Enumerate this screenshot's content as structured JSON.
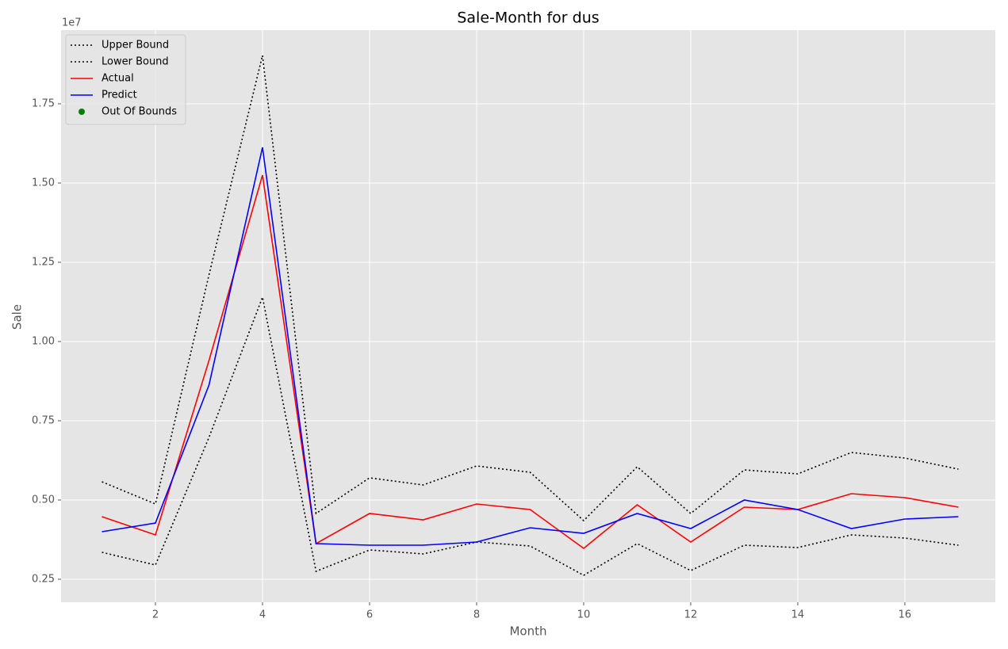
{
  "chart_data": {
    "type": "line",
    "title": "Sale-Month for dus",
    "x_label": "Month",
    "y_label": "Sale",
    "y_offset_label": "1e7",
    "x": [
      1,
      2,
      3,
      4,
      5,
      6,
      7,
      8,
      9,
      10,
      11,
      12,
      13,
      14,
      15,
      16,
      17
    ],
    "series": [
      {
        "name": "Upper Bound",
        "color": "#000000",
        "linestyle": "dotted",
        "values": [
          0.5575,
          0.4875,
          1.21,
          1.9025,
          0.4575,
          0.57,
          0.5475,
          0.6075,
          0.5875,
          0.435,
          0.605,
          0.4575,
          0.595,
          0.5825,
          0.65,
          0.6325,
          0.5975
        ]
      },
      {
        "name": "Lower Bound",
        "color": "#000000",
        "linestyle": "dotted",
        "values": [
          0.335,
          0.295,
          0.6975,
          1.14,
          0.275,
          0.3425,
          0.33,
          0.3675,
          0.355,
          0.2625,
          0.3625,
          0.2775,
          0.3575,
          0.35,
          0.39,
          0.38,
          0.3575
        ]
      },
      {
        "name": "Actual",
        "color": "#ff0000",
        "linestyle": "solid",
        "values": [
          0.4475,
          0.39,
          0.94,
          1.525,
          0.3625,
          0.4575,
          0.4375,
          0.4875,
          0.47,
          0.3475,
          0.485,
          0.3675,
          0.4775,
          0.47,
          0.52,
          0.5075,
          0.4775
        ]
      },
      {
        "name": "Predict",
        "color": "#0000ff",
        "linestyle": "solid",
        "values": [
          0.4,
          0.4275,
          0.8625,
          1.6125,
          0.3625,
          0.3575,
          0.3575,
          0.3675,
          0.4125,
          0.395,
          0.4575,
          0.41,
          0.5,
          0.47,
          0.41,
          0.44,
          0.4475
        ]
      },
      {
        "name": "Out Of Bounds",
        "color": "#008000",
        "linestyle": "none",
        "marker": "o",
        "values": [
          null,
          null,
          null,
          null,
          null,
          null,
          null,
          null,
          null,
          null,
          null,
          null,
          null,
          null,
          null,
          null,
          null
        ]
      }
    ],
    "xlim": [
      0.237,
      17.69
    ],
    "ylim": [
      0.1775,
      1.9825
    ],
    "xticks": [
      2,
      4,
      6,
      8,
      10,
      12,
      14,
      16
    ],
    "yticks": [
      0.25,
      {
        "value": 0.5,
        "label": "0.50"
      },
      0.75,
      {
        "value": 1.0,
        "label": "1.00"
      },
      1.25,
      {
        "value": 1.5,
        "label": "1.50"
      },
      1.75
    ],
    "grid": true,
    "legend": "upper left"
  }
}
